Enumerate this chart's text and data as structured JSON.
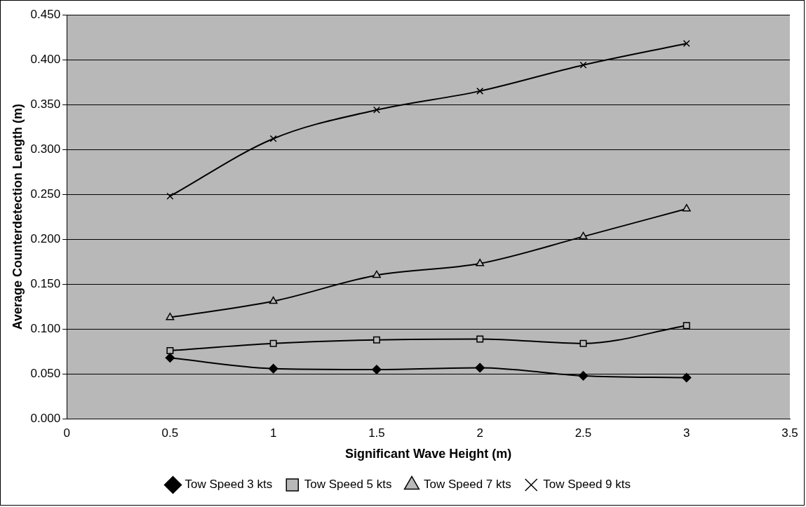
{
  "chart_data": {
    "type": "line",
    "xlabel": "Significant Wave Height (m)",
    "ylabel": "Average Counterdetection Length (m)",
    "x": [
      0.5,
      1,
      1.5,
      2,
      2.5,
      3
    ],
    "xlim": [
      0,
      3.5
    ],
    "xticks": [
      0,
      0.5,
      1,
      1.5,
      2,
      2.5,
      3,
      3.5
    ],
    "ylim": [
      0,
      0.45
    ],
    "yticks": [
      {
        "value": 0,
        "label": "0.000"
      },
      {
        "value": 0.05,
        "label": "0.050"
      },
      {
        "value": 0.1,
        "label": "0.100"
      },
      {
        "value": 0.15,
        "label": "0.150"
      },
      {
        "value": 0.2,
        "label": "0.200"
      },
      {
        "value": 0.25,
        "label": "0.250"
      },
      {
        "value": 0.3,
        "label": "0.300"
      },
      {
        "value": 0.35,
        "label": "0.350"
      },
      {
        "value": 0.4,
        "label": "0.400"
      },
      {
        "value": 0.45,
        "label": "0.450"
      }
    ],
    "grid": "y",
    "legend": "bottom",
    "line_style": "solid",
    "series": [
      {
        "name": "Tow Speed 3 kts",
        "color": "#000000",
        "marker": "diamond",
        "values": [
          0.068,
          0.056,
          0.055,
          0.057,
          0.048,
          0.046
        ]
      },
      {
        "name": "Tow Speed 5 kts",
        "color": "#000000",
        "marker": "square",
        "values": [
          0.076,
          0.084,
          0.088,
          0.089,
          0.084,
          0.104
        ]
      },
      {
        "name": "Tow Speed 7 kts",
        "color": "#000000",
        "marker": "triangle",
        "values": [
          0.113,
          0.131,
          0.16,
          0.173,
          0.203,
          0.234
        ]
      },
      {
        "name": "Tow Speed 9 kts",
        "color": "#000000",
        "marker": "cross",
        "values": [
          0.248,
          0.312,
          0.344,
          0.365,
          0.394,
          0.418
        ]
      }
    ]
  }
}
